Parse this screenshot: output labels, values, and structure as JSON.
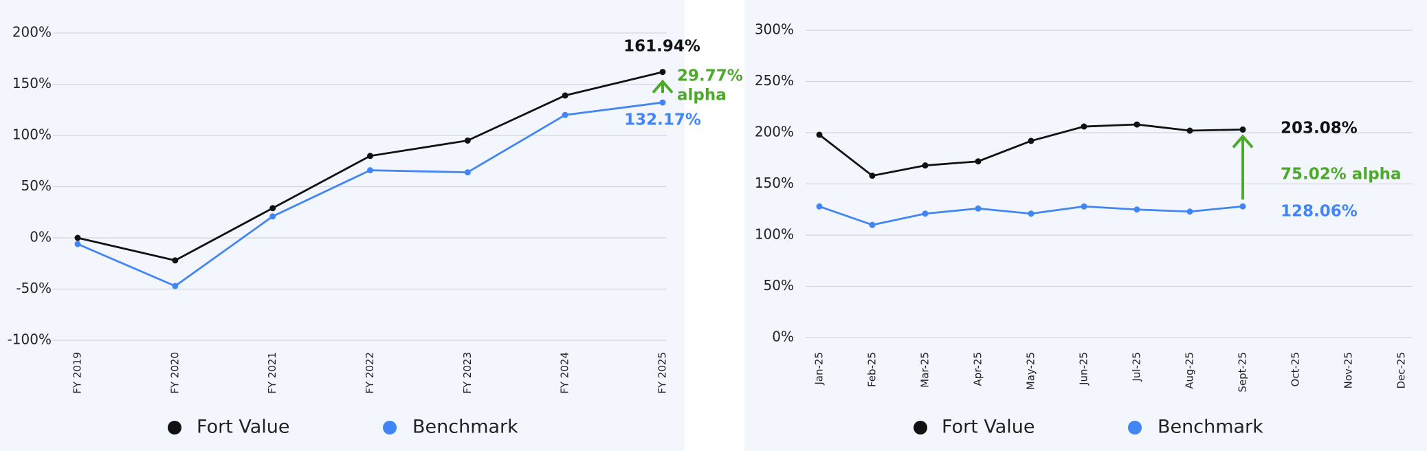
{
  "chart_data": [
    {
      "type": "line",
      "categories": [
        "FY 2019",
        "FY 2020",
        "FY 2021",
        "FY 2022",
        "FY 2023",
        "FY 2024",
        "FY 2025"
      ],
      "series": [
        {
          "name": "Fort Value",
          "color": "#111111",
          "values": [
            0,
            -22,
            29,
            80,
            95,
            139,
            161.94
          ]
        },
        {
          "name": "Benchmark",
          "color": "#4285f4",
          "values": [
            -6,
            -47,
            21,
            66,
            64,
            120,
            132.17
          ]
        }
      ],
      "ylim": [
        -100,
        200
      ],
      "yticks": [
        {
          "value": 200,
          "label": "200%"
        },
        {
          "value": 150,
          "label": "150%"
        },
        {
          "value": 100,
          "label": "100%"
        },
        {
          "value": 50,
          "label": "50%"
        },
        {
          "value": 0,
          "label": "0%"
        },
        {
          "value": -50,
          "label": "-50%"
        },
        {
          "value": -100,
          "label": "-100%"
        }
      ],
      "grid": true,
      "annotations": [
        "161.94%",
        "29.77%",
        "alpha",
        "132.17%"
      ]
    },
    {
      "type": "line",
      "categories": [
        "Jan-25",
        "Feb-25",
        "Mar-25",
        "Apr-25",
        "May-25",
        "Jun-25",
        "Jul-25",
        "Aug-25",
        "Sept-25",
        "Oct-25",
        "Nov-25",
        "Dec-25"
      ],
      "series": [
        {
          "name": "Fort Value",
          "color": "#111111",
          "values": [
            198,
            158,
            168,
            172,
            192,
            206,
            208,
            202,
            203.08,
            null,
            null,
            null
          ]
        },
        {
          "name": "Benchmark",
          "color": "#4285f4",
          "values": [
            128,
            110,
            121,
            126,
            121,
            128,
            125,
            123,
            128.06,
            null,
            null,
            null
          ]
        }
      ],
      "ylim": [
        0,
        300
      ],
      "yticks": [
        {
          "value": 300,
          "label": "300%"
        },
        {
          "value": 250,
          "label": "250%"
        },
        {
          "value": 200,
          "label": "200%"
        },
        {
          "value": 150,
          "label": "150%"
        },
        {
          "value": 100,
          "label": "100%"
        },
        {
          "value": 50,
          "label": "50%"
        },
        {
          "value": 0,
          "label": "0%"
        }
      ],
      "grid": true,
      "annotations": [
        "203.08%",
        "75.02% alpha",
        "128.06%"
      ]
    }
  ]
}
